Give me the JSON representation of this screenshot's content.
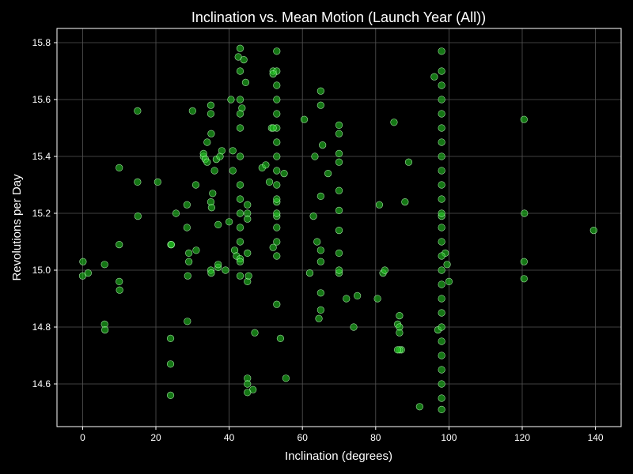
{
  "chart_data": {
    "type": "scatter",
    "title": "Inclination vs. Mean Motion (Launch Year (All))",
    "xlabel": "Inclination (degrees)",
    "ylabel": "Revolutions per Day",
    "xlim": [
      -7,
      147
    ],
    "ylim": [
      14.45,
      15.85
    ],
    "xticks": [
      0,
      20,
      40,
      60,
      80,
      100,
      120,
      140
    ],
    "yticks": [
      14.6,
      14.8,
      15.0,
      15.2,
      15.4,
      15.6,
      15.8
    ],
    "grid": true,
    "colors": {
      "background": "#000000",
      "point_fill": "#22c422",
      "point_edge": "#b8ffb8",
      "grid": "#555555"
    },
    "series": [
      {
        "x": [
          0.0,
          0.1,
          1.5,
          6.0,
          6.0,
          6.1,
          10.0,
          10.0,
          10.0,
          10.1,
          15.0,
          15.0,
          15.1,
          20.5,
          24.0,
          24.0,
          24.0,
          24.1,
          24.2,
          25.5,
          28.5,
          28.5,
          28.6,
          28.7,
          29.0,
          29.0,
          30.0,
          30.9,
          31.0,
          33.0,
          33.0,
          33.5,
          34.0,
          34.0,
          35.0,
          35.0,
          35.0,
          35.0,
          35.1,
          35.1,
          35.2,
          35.5,
          36.0,
          36.5,
          37.0,
          37.0,
          37.0,
          37.5,
          38.0,
          39.0,
          40.0,
          40.5,
          41.0,
          41.0,
          41.5,
          42.0,
          42.5,
          43.0,
          43.5,
          44.0,
          44.5,
          45.0,
          45.3,
          46.5,
          47.0,
          49.0,
          50.0,
          51.0,
          51.6,
          52.0,
          53.0,
          53.0,
          54.0,
          55.0,
          55.5,
          60.5,
          62.0,
          63.0,
          63.4,
          64.0,
          64.5,
          65.0,
          65.5,
          67.0,
          70.0,
          70.0,
          72.0,
          74.0,
          75.0,
          80.5,
          81.0,
          82.0,
          82.5,
          85.0,
          86.0,
          86.5,
          87.0,
          88.0,
          89.0,
          92.0,
          96.0,
          97.0,
          98.0,
          99.0,
          99.5,
          100.0,
          120.5,
          120.5,
          120.6,
          120.5,
          139.5,
          43.0,
          43.0,
          43.0,
          43.0,
          43.0,
          43.0,
          43.0,
          43.0,
          43.0,
          43.0,
          43.0,
          43.0,
          43.0,
          53.0,
          53.0,
          53.0,
          53.0,
          53.0,
          53.0,
          53.0,
          53.0,
          53.0,
          53.0,
          53.0,
          53.0,
          53.0,
          53.0,
          53.0,
          53.0,
          98.0,
          98.0,
          98.0,
          98.0,
          98.0,
          98.0,
          98.0,
          98.0,
          98.0,
          98.0,
          98.0,
          98.0,
          98.0,
          98.0,
          98.0,
          98.0,
          98.0,
          98.0,
          98.0,
          98.0,
          98.0,
          98.0,
          98.0,
          98.0,
          98.0,
          98.0,
          45.0,
          45.0,
          45.0,
          45.0,
          45.0,
          45.0,
          45.0,
          70.0,
          70.0,
          70.0,
          70.0,
          70.0,
          70.0,
          70.0,
          70.0,
          65.0,
          65.0,
          65.0,
          65.0,
          65.0,
          65.0,
          52.0,
          52.0,
          52.0,
          86.5,
          86.5,
          86.5,
          86.0
        ],
        "y": [
          14.98,
          15.03,
          14.99,
          14.81,
          15.02,
          14.79,
          15.36,
          15.09,
          14.96,
          14.93,
          15.31,
          15.56,
          15.19,
          15.31,
          14.76,
          14.67,
          14.56,
          15.09,
          15.09,
          15.2,
          15.23,
          15.15,
          14.82,
          14.98,
          15.03,
          15.06,
          15.56,
          15.3,
          15.07,
          15.4,
          15.41,
          15.39,
          15.38,
          15.45,
          15.0,
          15.24,
          15.55,
          15.58,
          15.48,
          14.99,
          15.22,
          15.27,
          15.35,
          15.39,
          15.16,
          15.01,
          15.02,
          15.4,
          15.42,
          15.0,
          15.17,
          15.6,
          15.35,
          15.42,
          15.07,
          15.05,
          15.75,
          15.04,
          15.57,
          15.74,
          15.66,
          14.96,
          14.98,
          14.58,
          14.78,
          15.36,
          15.37,
          15.31,
          15.5,
          15.7,
          15.24,
          15.19,
          14.76,
          15.34,
          14.62,
          15.53,
          14.99,
          15.19,
          15.4,
          15.1,
          14.83,
          15.26,
          15.44,
          15.34,
          15.38,
          14.99,
          14.9,
          14.8,
          14.91,
          14.9,
          15.23,
          14.99,
          15.0,
          15.52,
          14.81,
          14.84,
          14.72,
          15.24,
          15.38,
          14.52,
          15.68,
          14.79,
          15.19,
          15.06,
          15.02,
          14.96,
          15.53,
          15.03,
          15.2,
          14.97,
          15.14,
          15.78,
          15.7,
          15.6,
          15.5,
          15.4,
          15.3,
          15.2,
          15.1,
          15.03,
          14.98,
          15.55,
          15.25,
          15.15,
          15.77,
          15.7,
          15.65,
          15.6,
          15.55,
          15.5,
          15.45,
          15.4,
          15.35,
          15.3,
          15.25,
          15.2,
          15.15,
          15.1,
          15.05,
          14.88,
          15.77,
          15.7,
          15.65,
          15.6,
          15.55,
          15.5,
          15.45,
          15.4,
          15.35,
          15.3,
          15.25,
          15.2,
          15.15,
          15.1,
          15.05,
          15.0,
          14.95,
          14.9,
          14.85,
          14.8,
          14.75,
          14.7,
          14.65,
          14.6,
          14.55,
          14.51,
          15.23,
          15.2,
          15.18,
          15.06,
          14.62,
          14.6,
          14.57,
          15.51,
          15.48,
          15.41,
          15.28,
          15.21,
          15.14,
          15.06,
          15.0,
          15.63,
          15.58,
          15.07,
          15.03,
          14.92,
          14.86,
          15.69,
          15.5,
          15.08,
          14.72,
          14.8,
          14.78,
          14.72
        ]
      }
    ]
  }
}
